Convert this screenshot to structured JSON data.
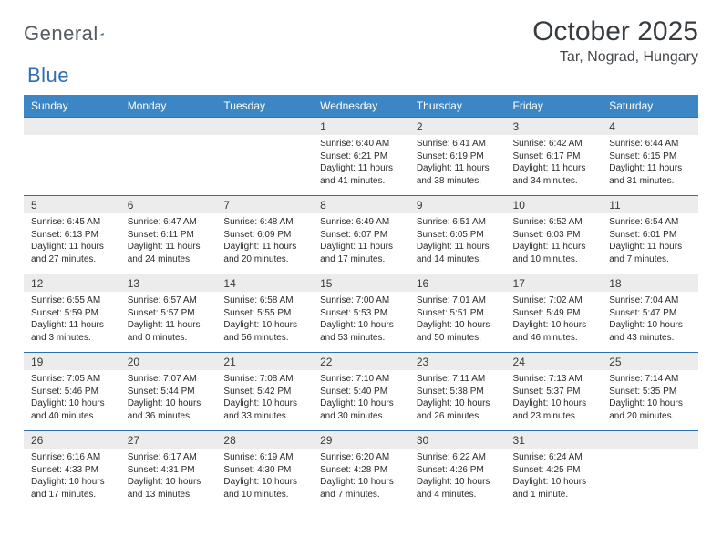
{
  "brand": {
    "word1": "General",
    "word2": "Blue"
  },
  "header": {
    "title": "October 2025",
    "location": "Tar, Nograd, Hungary"
  },
  "colors": {
    "header_bg": "#3d86c6",
    "row_border": "#2f6fb0",
    "daynum_bg": "#ececec",
    "text": "#2b2b2b",
    "brand_gray": "#555b60",
    "brand_blue": "#2f6fb0",
    "title_color": "#373c41"
  },
  "dayHeaders": [
    "Sunday",
    "Monday",
    "Tuesday",
    "Wednesday",
    "Thursday",
    "Friday",
    "Saturday"
  ],
  "weeks": [
    [
      {
        "n": "",
        "sr": "",
        "ss": "",
        "dl": ""
      },
      {
        "n": "",
        "sr": "",
        "ss": "",
        "dl": ""
      },
      {
        "n": "",
        "sr": "",
        "ss": "",
        "dl": ""
      },
      {
        "n": "1",
        "sr": "6:40 AM",
        "ss": "6:21 PM",
        "dl": "11 hours and 41 minutes."
      },
      {
        "n": "2",
        "sr": "6:41 AM",
        "ss": "6:19 PM",
        "dl": "11 hours and 38 minutes."
      },
      {
        "n": "3",
        "sr": "6:42 AM",
        "ss": "6:17 PM",
        "dl": "11 hours and 34 minutes."
      },
      {
        "n": "4",
        "sr": "6:44 AM",
        "ss": "6:15 PM",
        "dl": "11 hours and 31 minutes."
      }
    ],
    [
      {
        "n": "5",
        "sr": "6:45 AM",
        "ss": "6:13 PM",
        "dl": "11 hours and 27 minutes."
      },
      {
        "n": "6",
        "sr": "6:47 AM",
        "ss": "6:11 PM",
        "dl": "11 hours and 24 minutes."
      },
      {
        "n": "7",
        "sr": "6:48 AM",
        "ss": "6:09 PM",
        "dl": "11 hours and 20 minutes."
      },
      {
        "n": "8",
        "sr": "6:49 AM",
        "ss": "6:07 PM",
        "dl": "11 hours and 17 minutes."
      },
      {
        "n": "9",
        "sr": "6:51 AM",
        "ss": "6:05 PM",
        "dl": "11 hours and 14 minutes."
      },
      {
        "n": "10",
        "sr": "6:52 AM",
        "ss": "6:03 PM",
        "dl": "11 hours and 10 minutes."
      },
      {
        "n": "11",
        "sr": "6:54 AM",
        "ss": "6:01 PM",
        "dl": "11 hours and 7 minutes."
      }
    ],
    [
      {
        "n": "12",
        "sr": "6:55 AM",
        "ss": "5:59 PM",
        "dl": "11 hours and 3 minutes."
      },
      {
        "n": "13",
        "sr": "6:57 AM",
        "ss": "5:57 PM",
        "dl": "11 hours and 0 minutes."
      },
      {
        "n": "14",
        "sr": "6:58 AM",
        "ss": "5:55 PM",
        "dl": "10 hours and 56 minutes."
      },
      {
        "n": "15",
        "sr": "7:00 AM",
        "ss": "5:53 PM",
        "dl": "10 hours and 53 minutes."
      },
      {
        "n": "16",
        "sr": "7:01 AM",
        "ss": "5:51 PM",
        "dl": "10 hours and 50 minutes."
      },
      {
        "n": "17",
        "sr": "7:02 AM",
        "ss": "5:49 PM",
        "dl": "10 hours and 46 minutes."
      },
      {
        "n": "18",
        "sr": "7:04 AM",
        "ss": "5:47 PM",
        "dl": "10 hours and 43 minutes."
      }
    ],
    [
      {
        "n": "19",
        "sr": "7:05 AM",
        "ss": "5:46 PM",
        "dl": "10 hours and 40 minutes."
      },
      {
        "n": "20",
        "sr": "7:07 AM",
        "ss": "5:44 PM",
        "dl": "10 hours and 36 minutes."
      },
      {
        "n": "21",
        "sr": "7:08 AM",
        "ss": "5:42 PM",
        "dl": "10 hours and 33 minutes."
      },
      {
        "n": "22",
        "sr": "7:10 AM",
        "ss": "5:40 PM",
        "dl": "10 hours and 30 minutes."
      },
      {
        "n": "23",
        "sr": "7:11 AM",
        "ss": "5:38 PM",
        "dl": "10 hours and 26 minutes."
      },
      {
        "n": "24",
        "sr": "7:13 AM",
        "ss": "5:37 PM",
        "dl": "10 hours and 23 minutes."
      },
      {
        "n": "25",
        "sr": "7:14 AM",
        "ss": "5:35 PM",
        "dl": "10 hours and 20 minutes."
      }
    ],
    [
      {
        "n": "26",
        "sr": "6:16 AM",
        "ss": "4:33 PM",
        "dl": "10 hours and 17 minutes."
      },
      {
        "n": "27",
        "sr": "6:17 AM",
        "ss": "4:31 PM",
        "dl": "10 hours and 13 minutes."
      },
      {
        "n": "28",
        "sr": "6:19 AM",
        "ss": "4:30 PM",
        "dl": "10 hours and 10 minutes."
      },
      {
        "n": "29",
        "sr": "6:20 AM",
        "ss": "4:28 PM",
        "dl": "10 hours and 7 minutes."
      },
      {
        "n": "30",
        "sr": "6:22 AM",
        "ss": "4:26 PM",
        "dl": "10 hours and 4 minutes."
      },
      {
        "n": "31",
        "sr": "6:24 AM",
        "ss": "4:25 PM",
        "dl": "10 hours and 1 minute."
      },
      {
        "n": "",
        "sr": "",
        "ss": "",
        "dl": ""
      }
    ]
  ],
  "labels": {
    "sunrise": "Sunrise: ",
    "sunset": "Sunset: ",
    "daylight": "Daylight: "
  }
}
